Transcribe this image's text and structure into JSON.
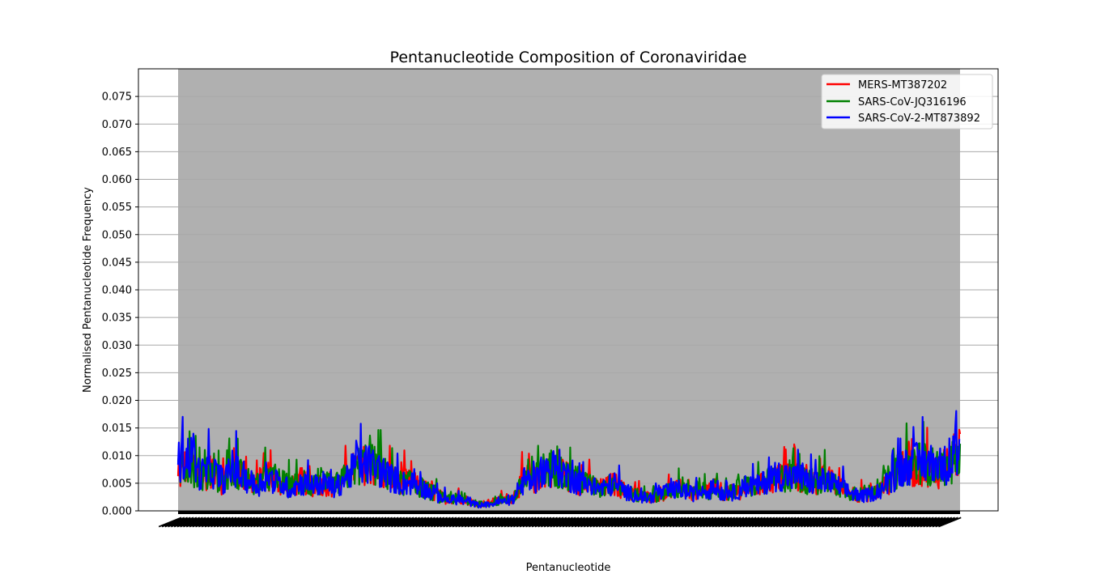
{
  "chart_data": {
    "type": "line",
    "title": "Pentanucleotide Composition of Coronaviridae",
    "xlabel": "Pentanucleotide",
    "ylabel": "Normalised Pentanucleotide Frequency",
    "ylim": [
      0,
      0.08
    ],
    "yticks": [
      "0.000",
      "0.005",
      "0.010",
      "0.015",
      "0.020",
      "0.025",
      "0.030",
      "0.035",
      "0.040",
      "0.045",
      "0.050",
      "0.055",
      "0.060",
      "0.065",
      "0.070",
      "0.075"
    ],
    "grid": "horizontal",
    "legend_position": "top-right",
    "plot_background": "#b0b0b0",
    "x_category_count": 1024,
    "series": [
      {
        "name": "MERS-MT387202",
        "color": "#ff0000",
        "profile": [
          0.0055,
          0.0095,
          0.0055,
          0.0075,
          0.005,
          0.008,
          0.006,
          0.0045,
          0.0065,
          0.005,
          0.004,
          0.0055,
          0.0045,
          0.005,
          0.004,
          0.006,
          0.008,
          0.0085,
          0.007,
          0.006,
          0.0055,
          0.005,
          0.004,
          0.003,
          0.0022,
          0.0025,
          0.0018,
          0.0012,
          0.0015,
          0.002,
          0.0025,
          0.006,
          0.0055,
          0.0075,
          0.008,
          0.006,
          0.005,
          0.0045,
          0.004,
          0.005,
          0.0035,
          0.003,
          0.0025,
          0.003,
          0.0035,
          0.004,
          0.003,
          0.0035,
          0.0045,
          0.003,
          0.0035,
          0.004,
          0.0045,
          0.0055,
          0.006,
          0.0065,
          0.0055,
          0.005,
          0.006,
          0.0045,
          0.0035,
          0.0028,
          0.003,
          0.004,
          0.006,
          0.0085,
          0.0075,
          0.008,
          0.007,
          0.009,
          0.0105
        ]
      },
      {
        "name": "SARS-CoV-JQ316196",
        "color": "#008000",
        "profile": [
          0.007,
          0.009,
          0.006,
          0.007,
          0.0055,
          0.0075,
          0.006,
          0.0045,
          0.006,
          0.0055,
          0.0045,
          0.005,
          0.0045,
          0.005,
          0.0045,
          0.006,
          0.008,
          0.009,
          0.0075,
          0.006,
          0.005,
          0.005,
          0.004,
          0.003,
          0.002,
          0.0022,
          0.0016,
          0.0012,
          0.0014,
          0.0018,
          0.0022,
          0.0055,
          0.006,
          0.008,
          0.0075,
          0.006,
          0.0055,
          0.0045,
          0.004,
          0.005,
          0.0035,
          0.0028,
          0.0025,
          0.003,
          0.0035,
          0.004,
          0.003,
          0.0035,
          0.004,
          0.003,
          0.004,
          0.0045,
          0.0045,
          0.0055,
          0.006,
          0.006,
          0.0055,
          0.005,
          0.0055,
          0.0045,
          0.0035,
          0.003,
          0.0035,
          0.0045,
          0.0065,
          0.008,
          0.009,
          0.0085,
          0.0075,
          0.0085,
          0.009
        ]
      },
      {
        "name": "SARS-CoV-2-MT873892",
        "color": "#0000ff",
        "profile": [
          0.009,
          0.01,
          0.0065,
          0.0075,
          0.0055,
          0.0075,
          0.006,
          0.0045,
          0.006,
          0.005,
          0.004,
          0.005,
          0.0045,
          0.005,
          0.004,
          0.006,
          0.008,
          0.0085,
          0.0075,
          0.006,
          0.005,
          0.005,
          0.004,
          0.0028,
          0.002,
          0.002,
          0.0015,
          0.001,
          0.0012,
          0.0016,
          0.002,
          0.0055,
          0.0055,
          0.0075,
          0.008,
          0.006,
          0.005,
          0.0045,
          0.004,
          0.005,
          0.0035,
          0.0028,
          0.0022,
          0.003,
          0.0035,
          0.004,
          0.003,
          0.0035,
          0.004,
          0.003,
          0.0035,
          0.0045,
          0.0045,
          0.006,
          0.0065,
          0.006,
          0.0055,
          0.005,
          0.0055,
          0.0045,
          0.0035,
          0.0025,
          0.003,
          0.004,
          0.006,
          0.008,
          0.0085,
          0.009,
          0.008,
          0.0085,
          0.01
        ]
      }
    ]
  }
}
